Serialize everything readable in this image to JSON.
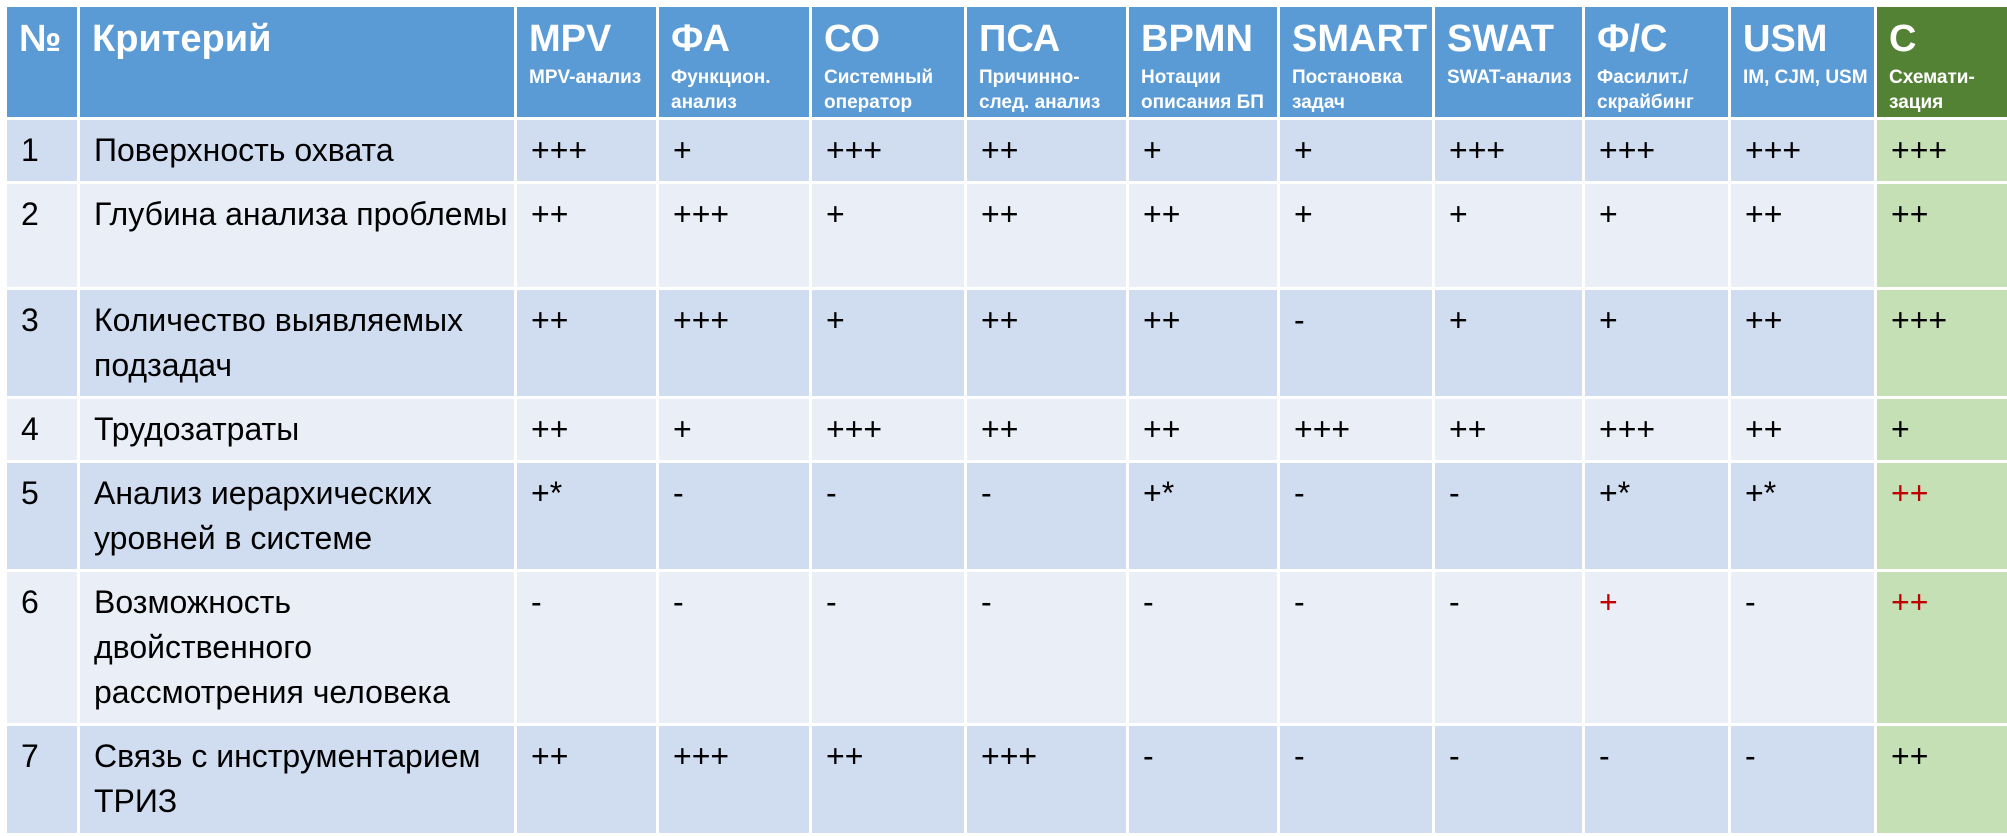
{
  "table": {
    "headers": {
      "num": "№",
      "criterion": "Критерий",
      "methods": [
        {
          "title": "MPV",
          "subtitle": "MPV-анализ"
        },
        {
          "title": "ФА",
          "subtitle": "Функцион. анализ"
        },
        {
          "title": "СО",
          "subtitle": "Системный оператор"
        },
        {
          "title": "ПСА",
          "subtitle": "Причинно-след. анализ"
        },
        {
          "title": "BPMN",
          "subtitle": "Нотации описания БП"
        },
        {
          "title": "SMART",
          "subtitle": "Постановка задач"
        },
        {
          "title": "SWAT",
          "subtitle": "SWAT-анализ"
        },
        {
          "title": "Ф/С",
          "subtitle": "Фасилит./ скрайбинг"
        },
        {
          "title": "USM",
          "subtitle": "IM, CJM, USM"
        },
        {
          "title": "С",
          "subtitle": "Схемати-зация"
        }
      ]
    },
    "rows": [
      {
        "num": "1",
        "criterion": "Поверхность охвата",
        "cells": [
          "+++",
          "+",
          "+++",
          "++",
          "+",
          "+",
          "+++",
          "+++",
          "+++",
          "+++"
        ]
      },
      {
        "num": "2",
        "criterion": "Глубина анализа проблемы",
        "cells": [
          "++",
          "+++",
          "+",
          "++",
          "++",
          "+",
          "+",
          "+",
          "++",
          "++"
        ]
      },
      {
        "num": "3",
        "criterion": "Количество выявляемых подзадач",
        "cells": [
          "++",
          "+++",
          "+",
          "++",
          "++",
          "-",
          "+",
          "+",
          "++",
          "+++"
        ]
      },
      {
        "num": "4",
        "criterion": "Трудозатраты",
        "cells": [
          "++",
          "+",
          "+++",
          "++",
          "++",
          "+++",
          "++",
          "+++",
          "++",
          "+"
        ]
      },
      {
        "num": "5",
        "criterion": "Анализ иерархических уровней в системе",
        "cells": [
          "+*",
          "-",
          "-",
          "-",
          "+*",
          "-",
          "-",
          "+*",
          "+*",
          "++"
        ]
      },
      {
        "num": "6",
        "criterion": "Возможность двойственного рассмотрения человека",
        "cells": [
          "-",
          "-",
          "-",
          "-",
          "-",
          "-",
          "-",
          "+",
          "-",
          "++"
        ]
      },
      {
        "num": "7",
        "criterion": "Связь с инструментарием ТРИЗ",
        "cells": [
          "++",
          "+++",
          "++",
          "+++",
          "-",
          "-",
          "-",
          "-",
          "-",
          "++"
        ]
      }
    ]
  },
  "colors": {
    "header_blue": "#5b9bd5",
    "header_green": "#548235",
    "row_dark": "#d0dcef",
    "row_light": "#e9eef7",
    "highlight_column": "#c5e0b4",
    "emphasis_red": "#c00000"
  }
}
